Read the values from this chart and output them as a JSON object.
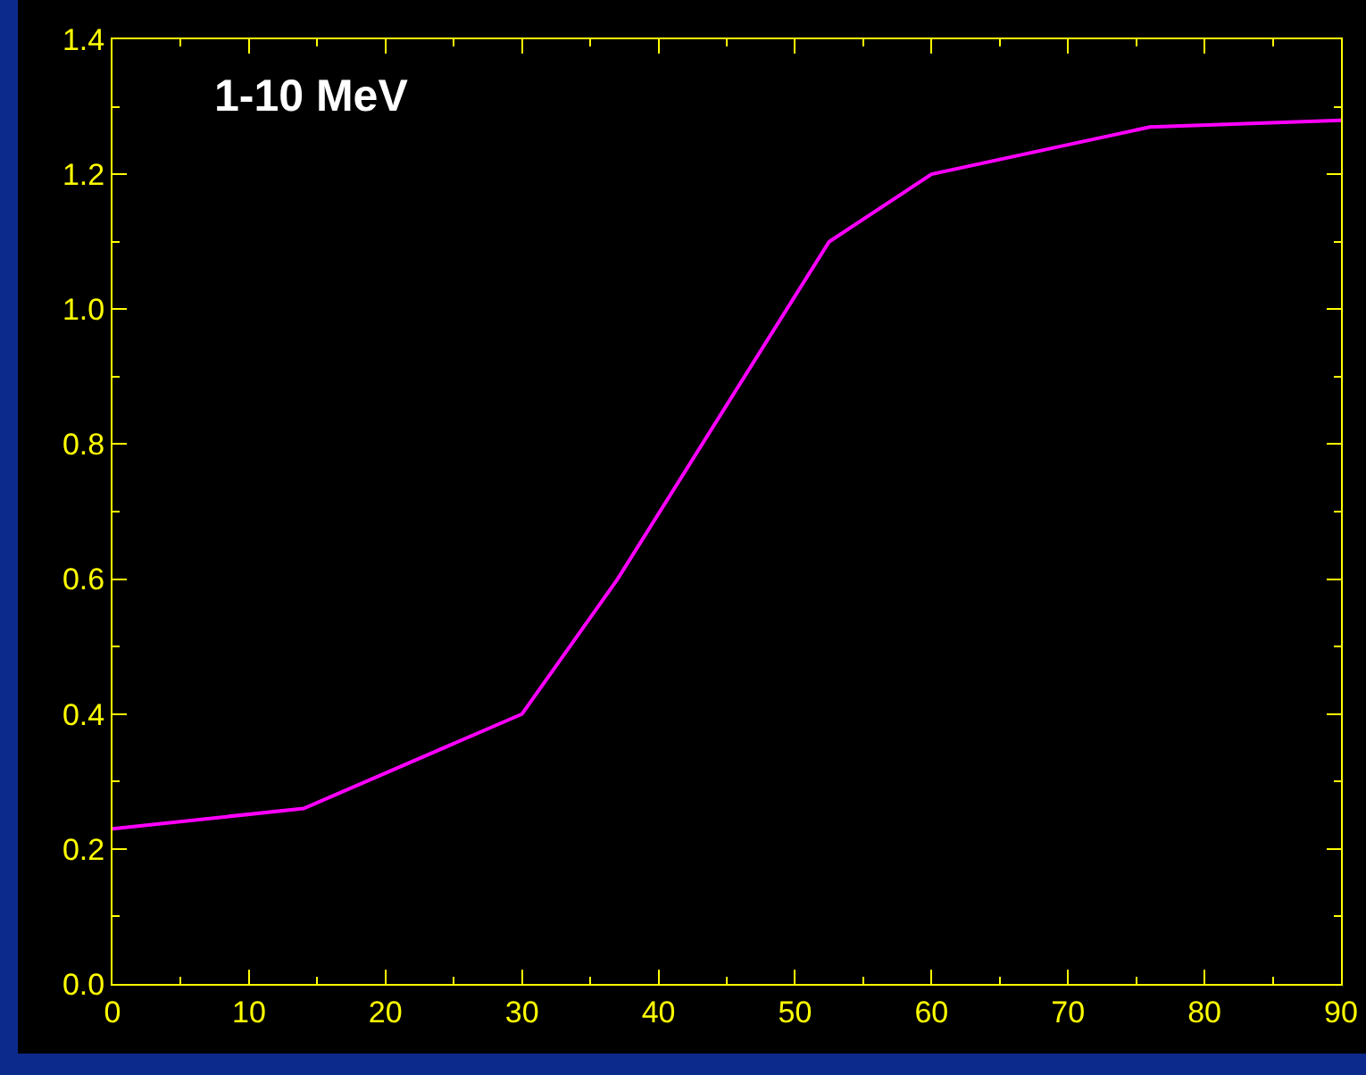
{
  "chart_data": {
    "type": "line",
    "annotations": [
      "1-10 MeV"
    ],
    "x": [
      0,
      14,
      30,
      37,
      52.5,
      60,
      76,
      90
    ],
    "series": [
      {
        "color": "#ff00ff",
        "values": [
          0.23,
          0.26,
          0.4,
          0.6,
          1.1,
          1.2,
          1.27,
          1.28
        ]
      }
    ],
    "xlim": [
      0,
      90
    ],
    "xticks": [
      0,
      10,
      20,
      30,
      40,
      50,
      60,
      70,
      80,
      90
    ],
    "ylim": [
      0,
      1.4
    ],
    "yticks": [
      {
        "value": 0,
        "label": "0.0"
      },
      {
        "value": 0.2,
        "label": "0.2"
      },
      {
        "value": 0.4,
        "label": "0.4"
      },
      {
        "value": 0.6,
        "label": "0.6"
      },
      {
        "value": 0.8,
        "label": "0.8"
      },
      {
        "value": 1,
        "label": "1.0"
      },
      {
        "value": 1.2,
        "label": "1.2"
      },
      {
        "value": 1.4,
        "label": "1.4"
      }
    ],
    "grid": false,
    "marker": "none",
    "line_style": "solid"
  }
}
